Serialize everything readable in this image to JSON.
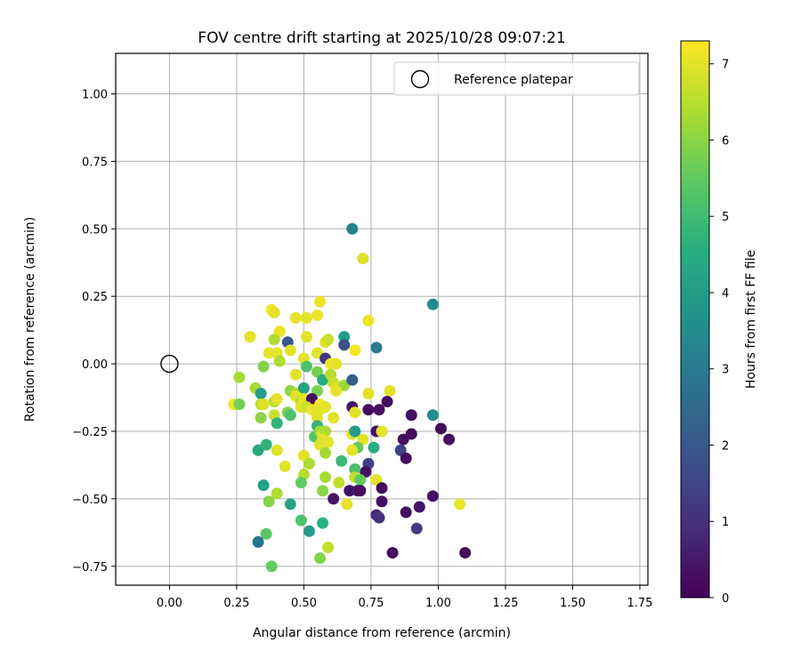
{
  "chart_data": {
    "type": "scatter",
    "title": "FOV centre drift starting at 2025/10/28 09:07:21",
    "xlabel": "Angular distance from reference (arcmin)",
    "ylabel": "Rotation from reference (arcmin)",
    "xlim": [
      -0.2,
      1.78
    ],
    "ylim": [
      -0.82,
      1.15
    ],
    "xticks": [
      "0.00",
      "0.25",
      "0.50",
      "0.75",
      "1.00",
      "1.25",
      "1.50",
      "1.75"
    ],
    "yticks": [
      "−0.75",
      "−0.50",
      "−0.25",
      "0.00",
      "0.25",
      "0.50",
      "0.75",
      "1.00"
    ],
    "grid": true,
    "legend": {
      "location": "upper right",
      "entries": [
        "Reference platepar"
      ]
    },
    "reference_point": {
      "x": 0.0,
      "y": 0.0,
      "label": "Reference platepar"
    },
    "colorbar": {
      "label": "Hours from first FF file",
      "min": 0,
      "max": 7.3,
      "ticks": [
        "0",
        "1",
        "2",
        "3",
        "4",
        "5",
        "6",
        "7"
      ],
      "colormap": "viridis"
    },
    "points": [
      {
        "x": 0.68,
        "y": 0.5,
        "h": 3.2
      },
      {
        "x": 0.72,
        "y": 0.39,
        "h": 6.9
      },
      {
        "x": 0.98,
        "y": 0.22,
        "h": 3.5
      },
      {
        "x": 0.56,
        "y": 0.23,
        "h": 7.1
      },
      {
        "x": 0.55,
        "y": 0.18,
        "h": 7.1
      },
      {
        "x": 0.74,
        "y": 0.16,
        "h": 7.1
      },
      {
        "x": 0.38,
        "y": 0.2,
        "h": 7.2
      },
      {
        "x": 0.39,
        "y": 0.19,
        "h": 7.0
      },
      {
        "x": 0.47,
        "y": 0.17,
        "h": 7.0
      },
      {
        "x": 0.51,
        "y": 0.17,
        "h": 7.0
      },
      {
        "x": 0.41,
        "y": 0.12,
        "h": 7.1
      },
      {
        "x": 0.3,
        "y": 0.1,
        "h": 7.0
      },
      {
        "x": 0.39,
        "y": 0.09,
        "h": 6.4
      },
      {
        "x": 0.65,
        "y": 0.1,
        "h": 4.0
      },
      {
        "x": 0.51,
        "y": 0.1,
        "h": 7.0
      },
      {
        "x": 0.44,
        "y": 0.08,
        "h": 2.0
      },
      {
        "x": 0.65,
        "y": 0.07,
        "h": 1.8
      },
      {
        "x": 0.77,
        "y": 0.06,
        "h": 3.0
      },
      {
        "x": 0.58,
        "y": 0.08,
        "h": 7.0
      },
      {
        "x": 0.59,
        "y": 0.09,
        "h": 6.7
      },
      {
        "x": 0.37,
        "y": 0.04,
        "h": 7.0
      },
      {
        "x": 0.4,
        "y": 0.04,
        "h": 7.0
      },
      {
        "x": 0.45,
        "y": 0.05,
        "h": 7.0
      },
      {
        "x": 0.55,
        "y": 0.04,
        "h": 7.0
      },
      {
        "x": 0.69,
        "y": 0.05,
        "h": 7.2
      },
      {
        "x": 0.58,
        "y": 0.02,
        "h": 1.2
      },
      {
        "x": 0.5,
        "y": 0.02,
        "h": 7.0
      },
      {
        "x": 0.41,
        "y": 0.01,
        "h": 6.4
      },
      {
        "x": 0.35,
        "y": -0.01,
        "h": 5.9
      },
      {
        "x": 0.51,
        "y": -0.01,
        "h": 5.2
      },
      {
        "x": 0.55,
        "y": -0.03,
        "h": 5.8
      },
      {
        "x": 0.6,
        "y": 0.0,
        "h": 7.1
      },
      {
        "x": 0.62,
        "y": 0.0,
        "h": 7.0
      },
      {
        "x": 0.47,
        "y": -0.04,
        "h": 7.0
      },
      {
        "x": 0.57,
        "y": -0.06,
        "h": 4.5
      },
      {
        "x": 0.6,
        "y": -0.04,
        "h": 6.5
      },
      {
        "x": 0.61,
        "y": -0.07,
        "h": 6.7
      },
      {
        "x": 0.62,
        "y": -0.09,
        "h": 6.9
      },
      {
        "x": 0.65,
        "y": -0.08,
        "h": 6.2
      },
      {
        "x": 0.68,
        "y": -0.06,
        "h": 2.2
      },
      {
        "x": 0.26,
        "y": -0.05,
        "h": 6.3
      },
      {
        "x": 0.32,
        "y": -0.09,
        "h": 6.3
      },
      {
        "x": 0.34,
        "y": -0.11,
        "h": 4.0
      },
      {
        "x": 0.45,
        "y": -0.1,
        "h": 6.0
      },
      {
        "x": 0.47,
        "y": -0.11,
        "h": 6.4
      },
      {
        "x": 0.5,
        "y": -0.09,
        "h": 4.2
      },
      {
        "x": 0.55,
        "y": -0.1,
        "h": 5.8
      },
      {
        "x": 0.62,
        "y": -0.1,
        "h": 7.0
      },
      {
        "x": 0.74,
        "y": -0.11,
        "h": 7.0
      },
      {
        "x": 0.82,
        "y": -0.1,
        "h": 7.0
      },
      {
        "x": 0.24,
        "y": -0.15,
        "h": 7.1
      },
      {
        "x": 0.26,
        "y": -0.15,
        "h": 5.7
      },
      {
        "x": 0.34,
        "y": -0.15,
        "h": 6.6
      },
      {
        "x": 0.35,
        "y": -0.15,
        "h": 6.9
      },
      {
        "x": 0.39,
        "y": -0.14,
        "h": 6.5
      },
      {
        "x": 0.4,
        "y": -0.13,
        "h": 7.0
      },
      {
        "x": 0.47,
        "y": -0.12,
        "h": 7.0
      },
      {
        "x": 0.49,
        "y": -0.14,
        "h": 6.5
      },
      {
        "x": 0.5,
        "y": -0.13,
        "h": 7.0
      },
      {
        "x": 0.53,
        "y": -0.13,
        "h": 0.3
      },
      {
        "x": 0.49,
        "y": -0.16,
        "h": 7.0
      },
      {
        "x": 0.51,
        "y": -0.16,
        "h": 6.7
      },
      {
        "x": 0.53,
        "y": -0.17,
        "h": 7.1
      },
      {
        "x": 0.55,
        "y": -0.17,
        "h": 6.9
      },
      {
        "x": 0.56,
        "y": -0.15,
        "h": 7.2
      },
      {
        "x": 0.58,
        "y": -0.16,
        "h": 7.0
      },
      {
        "x": 0.68,
        "y": -0.16,
        "h": 0.4
      },
      {
        "x": 0.69,
        "y": -0.18,
        "h": 7.0
      },
      {
        "x": 0.74,
        "y": -0.17,
        "h": 0.2
      },
      {
        "x": 0.78,
        "y": -0.17,
        "h": 0.3
      },
      {
        "x": 0.81,
        "y": -0.14,
        "h": 0.3
      },
      {
        "x": 0.98,
        "y": -0.19,
        "h": 3.6
      },
      {
        "x": 0.9,
        "y": -0.19,
        "h": 0.3
      },
      {
        "x": 0.34,
        "y": -0.2,
        "h": 6.0
      },
      {
        "x": 0.39,
        "y": -0.19,
        "h": 6.7
      },
      {
        "x": 0.4,
        "y": -0.22,
        "h": 4.7
      },
      {
        "x": 0.44,
        "y": -0.18,
        "h": 5.8
      },
      {
        "x": 0.45,
        "y": -0.19,
        "h": 5.2
      },
      {
        "x": 0.55,
        "y": -0.2,
        "h": 7.0
      },
      {
        "x": 0.56,
        "y": -0.17,
        "h": 7.0
      },
      {
        "x": 0.61,
        "y": -0.2,
        "h": 7.0
      },
      {
        "x": 0.55,
        "y": -0.23,
        "h": 4.8
      },
      {
        "x": 0.54,
        "y": -0.27,
        "h": 5.3
      },
      {
        "x": 0.56,
        "y": -0.25,
        "h": 6.2
      },
      {
        "x": 0.57,
        "y": -0.26,
        "h": 7.0
      },
      {
        "x": 0.58,
        "y": -0.25,
        "h": 6.4
      },
      {
        "x": 0.57,
        "y": -0.28,
        "h": 7.0
      },
      {
        "x": 0.56,
        "y": -0.3,
        "h": 6.9
      },
      {
        "x": 0.59,
        "y": -0.29,
        "h": 7.0
      },
      {
        "x": 0.68,
        "y": -0.26,
        "h": 7.0
      },
      {
        "x": 0.69,
        "y": -0.25,
        "h": 4.0
      },
      {
        "x": 0.72,
        "y": -0.28,
        "h": 7.0
      },
      {
        "x": 0.7,
        "y": -0.31,
        "h": 5.5
      },
      {
        "x": 0.68,
        "y": -0.32,
        "h": 7.0
      },
      {
        "x": 0.76,
        "y": -0.31,
        "h": 4.5
      },
      {
        "x": 0.77,
        "y": -0.25,
        "h": 0.4
      },
      {
        "x": 0.79,
        "y": -0.25,
        "h": 7.0
      },
      {
        "x": 0.87,
        "y": -0.28,
        "h": 0.3
      },
      {
        "x": 0.9,
        "y": -0.26,
        "h": 0.2
      },
      {
        "x": 0.86,
        "y": -0.32,
        "h": 1.4
      },
      {
        "x": 0.88,
        "y": -0.35,
        "h": 0.2
      },
      {
        "x": 1.01,
        "y": -0.24,
        "h": 0.2
      },
      {
        "x": 1.04,
        "y": -0.28,
        "h": 0.3
      },
      {
        "x": 0.33,
        "y": -0.32,
        "h": 4.3
      },
      {
        "x": 0.36,
        "y": -0.3,
        "h": 4.7
      },
      {
        "x": 0.4,
        "y": -0.32,
        "h": 7.0
      },
      {
        "x": 0.43,
        "y": -0.38,
        "h": 7.0
      },
      {
        "x": 0.5,
        "y": -0.34,
        "h": 7.0
      },
      {
        "x": 0.52,
        "y": -0.37,
        "h": 6.4
      },
      {
        "x": 0.58,
        "y": -0.33,
        "h": 6.3
      },
      {
        "x": 0.64,
        "y": -0.36,
        "h": 4.9
      },
      {
        "x": 0.74,
        "y": -0.37,
        "h": 1.4
      },
      {
        "x": 0.73,
        "y": -0.4,
        "h": 0.3
      },
      {
        "x": 0.69,
        "y": -0.39,
        "h": 5.1
      },
      {
        "x": 0.5,
        "y": -0.41,
        "h": 6.5
      },
      {
        "x": 0.49,
        "y": -0.44,
        "h": 5.5
      },
      {
        "x": 0.58,
        "y": -0.42,
        "h": 6.3
      },
      {
        "x": 0.63,
        "y": -0.44,
        "h": 6.6
      },
      {
        "x": 0.69,
        "y": -0.42,
        "h": 6.6
      },
      {
        "x": 0.71,
        "y": -0.43,
        "h": 5.5
      },
      {
        "x": 0.77,
        "y": -0.43,
        "h": 7.0
      },
      {
        "x": 0.35,
        "y": -0.45,
        "h": 4.1
      },
      {
        "x": 0.4,
        "y": -0.48,
        "h": 6.4
      },
      {
        "x": 0.57,
        "y": -0.47,
        "h": 6.0
      },
      {
        "x": 0.61,
        "y": -0.5,
        "h": 0.4
      },
      {
        "x": 0.67,
        "y": -0.47,
        "h": 0.3
      },
      {
        "x": 0.7,
        "y": -0.47,
        "h": 0.5
      },
      {
        "x": 0.71,
        "y": -0.47,
        "h": 0.2
      },
      {
        "x": 0.79,
        "y": -0.46,
        "h": 0.2
      },
      {
        "x": 0.37,
        "y": -0.51,
        "h": 6.0
      },
      {
        "x": 0.45,
        "y": -0.52,
        "h": 4.3
      },
      {
        "x": 0.66,
        "y": -0.52,
        "h": 7.0
      },
      {
        "x": 0.79,
        "y": -0.51,
        "h": 0.3
      },
      {
        "x": 0.88,
        "y": -0.55,
        "h": 0.3
      },
      {
        "x": 0.93,
        "y": -0.53,
        "h": 0.4
      },
      {
        "x": 0.98,
        "y": -0.49,
        "h": 0.3
      },
      {
        "x": 1.08,
        "y": -0.52,
        "h": 7.1
      },
      {
        "x": 0.77,
        "y": -0.56,
        "h": 0.8
      },
      {
        "x": 0.78,
        "y": -0.57,
        "h": 1.0
      },
      {
        "x": 0.49,
        "y": -0.58,
        "h": 5.2
      },
      {
        "x": 0.57,
        "y": -0.59,
        "h": 4.6
      },
      {
        "x": 0.36,
        "y": -0.63,
        "h": 5.4
      },
      {
        "x": 0.52,
        "y": -0.62,
        "h": 4.0
      },
      {
        "x": 0.92,
        "y": -0.61,
        "h": 1.3
      },
      {
        "x": 0.33,
        "y": -0.66,
        "h": 2.8
      },
      {
        "x": 0.59,
        "y": -0.68,
        "h": 6.6
      },
      {
        "x": 0.56,
        "y": -0.72,
        "h": 5.9
      },
      {
        "x": 0.83,
        "y": -0.7,
        "h": 0.2
      },
      {
        "x": 1.1,
        "y": -0.7,
        "h": 0.2
      },
      {
        "x": 0.38,
        "y": -0.75,
        "h": 5.5
      }
    ]
  }
}
